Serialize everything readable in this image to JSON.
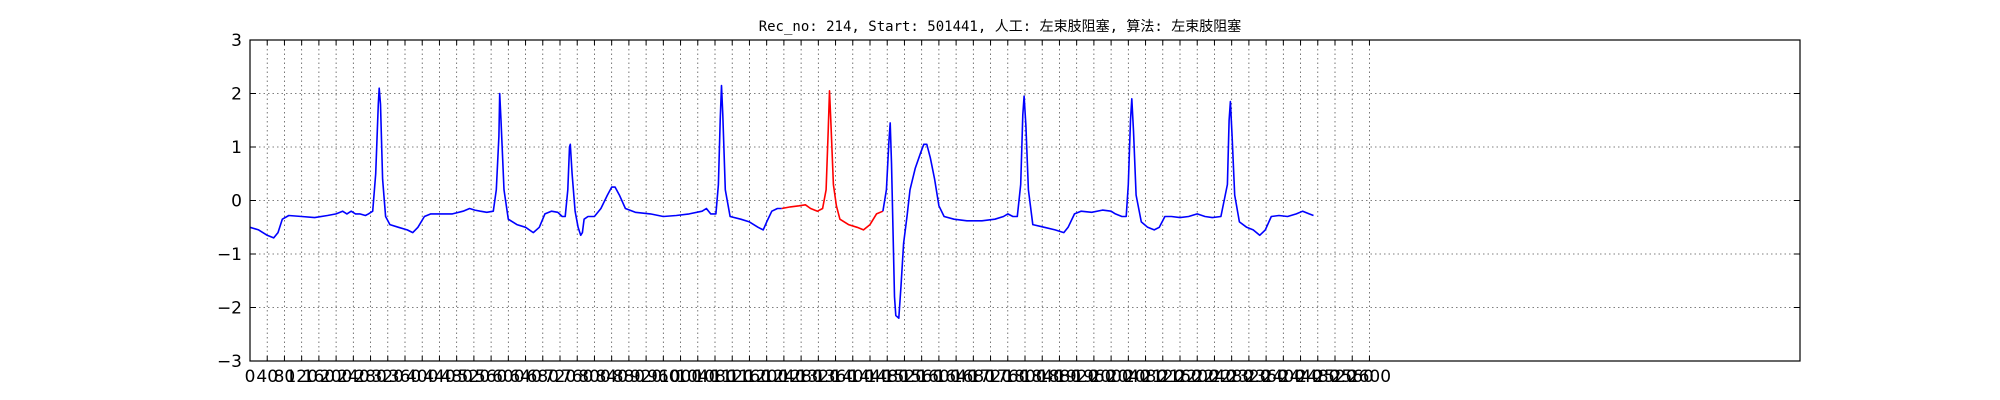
{
  "chart_data": {
    "type": "line",
    "title": "Rec_no: 214, Start: 501441, 人工: 左束肢阻塞, 算法: 左束肢阻塞",
    "xlabel": "",
    "ylabel": "",
    "xlim": [
      0,
      3600
    ],
    "ylim": [
      -3,
      3
    ],
    "x_ticks": [
      0,
      40,
      80,
      120,
      160,
      200,
      240,
      280,
      320,
      360,
      400,
      440,
      480,
      520,
      560,
      600,
      640,
      680,
      720,
      760,
      800,
      840,
      880,
      920,
      960,
      1000,
      1040,
      1080,
      1120,
      1160,
      1200,
      1240,
      1280,
      1320,
      1360,
      1400,
      1440,
      1480,
      1520,
      1560,
      1600,
      1640,
      1680,
      1720,
      1760,
      1800,
      1840,
      1880,
      1920,
      1960,
      2000,
      2040,
      2080,
      2120,
      2160,
      2200,
      2240,
      2280,
      2320,
      2360,
      2400,
      2440,
      2480,
      2520,
      2560,
      2600
    ],
    "y_ticks": [
      3,
      2,
      1,
      0,
      -1,
      -2,
      -3
    ],
    "y_tick_labels": [
      "3",
      "2",
      "1",
      "0",
      "−1",
      "−2",
      "−3"
    ],
    "grid": true,
    "series": [
      {
        "color": "#0000ff",
        "points": [
          [
            0,
            -0.5
          ],
          [
            20,
            -0.55
          ],
          [
            40,
            -0.65
          ],
          [
            55,
            -0.7
          ],
          [
            65,
            -0.6
          ],
          [
            75,
            -0.35
          ],
          [
            90,
            -0.28
          ],
          [
            120,
            -0.3
          ],
          [
            150,
            -0.32
          ],
          [
            180,
            -0.28
          ],
          [
            200,
            -0.25
          ],
          [
            215,
            -0.2
          ],
          [
            225,
            -0.25
          ],
          [
            235,
            -0.2
          ],
          [
            245,
            -0.25
          ],
          [
            255,
            -0.25
          ],
          [
            268,
            -0.28
          ],
          [
            275,
            -0.25
          ],
          [
            285,
            -0.2
          ],
          [
            292,
            0.5
          ],
          [
            298,
            1.8
          ],
          [
            300,
            2.1
          ],
          [
            303,
            1.8
          ],
          [
            308,
            0.4
          ],
          [
            315,
            -0.3
          ],
          [
            325,
            -0.45
          ],
          [
            345,
            -0.5
          ],
          [
            365,
            -0.55
          ],
          [
            378,
            -0.6
          ],
          [
            390,
            -0.5
          ],
          [
            405,
            -0.3
          ],
          [
            420,
            -0.25
          ],
          [
            445,
            -0.25
          ],
          [
            470,
            -0.25
          ],
          [
            495,
            -0.2
          ],
          [
            510,
            -0.15
          ],
          [
            522,
            -0.18
          ],
          [
            535,
            -0.2
          ],
          [
            550,
            -0.22
          ],
          [
            565,
            -0.2
          ],
          [
            572,
            0.2
          ],
          [
            578,
            1.2
          ],
          [
            580,
            2.0
          ],
          [
            583,
            1.5
          ],
          [
            590,
            0.2
          ],
          [
            600,
            -0.35
          ],
          [
            620,
            -0.45
          ],
          [
            640,
            -0.5
          ],
          [
            658,
            -0.6
          ],
          [
            672,
            -0.5
          ],
          [
            685,
            -0.25
          ],
          [
            700,
            -0.2
          ],
          [
            715,
            -0.22
          ],
          [
            725,
            -0.3
          ],
          [
            732,
            -0.3
          ],
          [
            738,
            0.2
          ],
          [
            742,
            1.0
          ],
          [
            744,
            1.05
          ],
          [
            748,
            0.5
          ],
          [
            755,
            -0.2
          ],
          [
            762,
            -0.5
          ],
          [
            768,
            -0.65
          ],
          [
            772,
            -0.6
          ],
          [
            776,
            -0.35
          ],
          [
            785,
            -0.3
          ],
          [
            800,
            -0.3
          ],
          [
            815,
            -0.15
          ],
          [
            830,
            0.1
          ],
          [
            840,
            0.25
          ],
          [
            848,
            0.25
          ],
          [
            858,
            0.1
          ],
          [
            872,
            -0.15
          ],
          [
            895,
            -0.22
          ],
          [
            930,
            -0.25
          ],
          [
            960,
            -0.3
          ],
          [
            990,
            -0.28
          ],
          [
            1020,
            -0.25
          ],
          [
            1050,
            -0.2
          ],
          [
            1060,
            -0.15
          ],
          [
            1070,
            -0.25
          ],
          [
            1082,
            -0.25
          ],
          [
            1088,
            0.3
          ],
          [
            1092,
            1.5
          ],
          [
            1095,
            2.15
          ],
          [
            1098,
            1.6
          ],
          [
            1104,
            0.2
          ],
          [
            1115,
            -0.3
          ],
          [
            1140,
            -0.35
          ],
          [
            1160,
            -0.4
          ],
          [
            1180,
            -0.5
          ],
          [
            1192,
            -0.55
          ],
          [
            1200,
            -0.4
          ],
          [
            1212,
            -0.2
          ],
          [
            1225,
            -0.15
          ],
          [
            1235,
            -0.15
          ]
        ]
      },
      {
        "color": "#ff0000",
        "points": [
          [
            1235,
            -0.15
          ],
          [
            1255,
            -0.12
          ],
          [
            1275,
            -0.1
          ],
          [
            1290,
            -0.08
          ],
          [
            1302,
            -0.15
          ],
          [
            1318,
            -0.2
          ],
          [
            1330,
            -0.15
          ],
          [
            1338,
            0.2
          ],
          [
            1343,
            1.3
          ],
          [
            1346,
            2.05
          ],
          [
            1349,
            1.5
          ],
          [
            1355,
            0.3
          ],
          [
            1362,
            -0.1
          ],
          [
            1370,
            -0.35
          ],
          [
            1390,
            -0.45
          ],
          [
            1410,
            -0.5
          ],
          [
            1425,
            -0.55
          ],
          [
            1440,
            -0.45
          ],
          [
            1455,
            -0.25
          ],
          [
            1470,
            -0.2
          ]
        ]
      },
      {
        "color": "#0000ff",
        "points": [
          [
            1470,
            -0.2
          ],
          [
            1478,
            0.2
          ],
          [
            1484,
            1.1
          ],
          [
            1487,
            1.45
          ],
          [
            1490,
            0.7
          ],
          [
            1494,
            -0.8
          ],
          [
            1497,
            -1.8
          ],
          [
            1500,
            -2.15
          ],
          [
            1507,
            -2.2
          ],
          [
            1512,
            -1.6
          ],
          [
            1518,
            -0.8
          ],
          [
            1526,
            -0.3
          ],
          [
            1533,
            0.2
          ],
          [
            1545,
            0.6
          ],
          [
            1558,
            0.9
          ],
          [
            1565,
            1.05
          ],
          [
            1572,
            1.05
          ],
          [
            1580,
            0.8
          ],
          [
            1590,
            0.4
          ],
          [
            1600,
            -0.1
          ],
          [
            1612,
            -0.3
          ],
          [
            1635,
            -0.35
          ],
          [
            1665,
            -0.38
          ],
          [
            1700,
            -0.38
          ],
          [
            1730,
            -0.35
          ],
          [
            1750,
            -0.3
          ],
          [
            1760,
            -0.25
          ],
          [
            1772,
            -0.3
          ],
          [
            1782,
            -0.3
          ],
          [
            1790,
            0.3
          ],
          [
            1795,
            1.6
          ],
          [
            1798,
            1.95
          ],
          [
            1802,
            1.4
          ],
          [
            1808,
            0.2
          ],
          [
            1818,
            -0.45
          ],
          [
            1845,
            -0.5
          ],
          [
            1870,
            -0.55
          ],
          [
            1890,
            -0.6
          ],
          [
            1900,
            -0.5
          ],
          [
            1915,
            -0.25
          ],
          [
            1930,
            -0.2
          ],
          [
            1955,
            -0.22
          ],
          [
            1980,
            -0.18
          ],
          [
            2000,
            -0.2
          ],
          [
            2010,
            -0.25
          ],
          [
            2025,
            -0.3
          ],
          [
            2035,
            -0.3
          ],
          [
            2040,
            0.3
          ],
          [
            2045,
            1.5
          ],
          [
            2048,
            1.9
          ],
          [
            2052,
            1.3
          ],
          [
            2058,
            0.1
          ],
          [
            2070,
            -0.4
          ],
          [
            2085,
            -0.5
          ],
          [
            2100,
            -0.55
          ],
          [
            2112,
            -0.5
          ],
          [
            2125,
            -0.3
          ],
          [
            2140,
            -0.3
          ],
          [
            2160,
            -0.32
          ],
          [
            2180,
            -0.3
          ],
          [
            2200,
            -0.25
          ],
          [
            2218,
            -0.3
          ],
          [
            2235,
            -0.32
          ],
          [
            2255,
            -0.3
          ],
          [
            2270,
            0.3
          ],
          [
            2274,
            1.5
          ],
          [
            2277,
            1.85
          ],
          [
            2281,
            1.2
          ],
          [
            2287,
            0.1
          ],
          [
            2298,
            -0.4
          ],
          [
            2315,
            -0.5
          ],
          [
            2330,
            -0.55
          ],
          [
            2345,
            -0.65
          ],
          [
            2358,
            -0.55
          ],
          [
            2372,
            -0.3
          ],
          [
            2390,
            -0.28
          ],
          [
            2410,
            -0.3
          ],
          [
            2430,
            -0.25
          ],
          [
            2445,
            -0.2
          ],
          [
            2460,
            -0.25
          ],
          [
            2470,
            -0.28
          ]
        ]
      }
    ]
  }
}
